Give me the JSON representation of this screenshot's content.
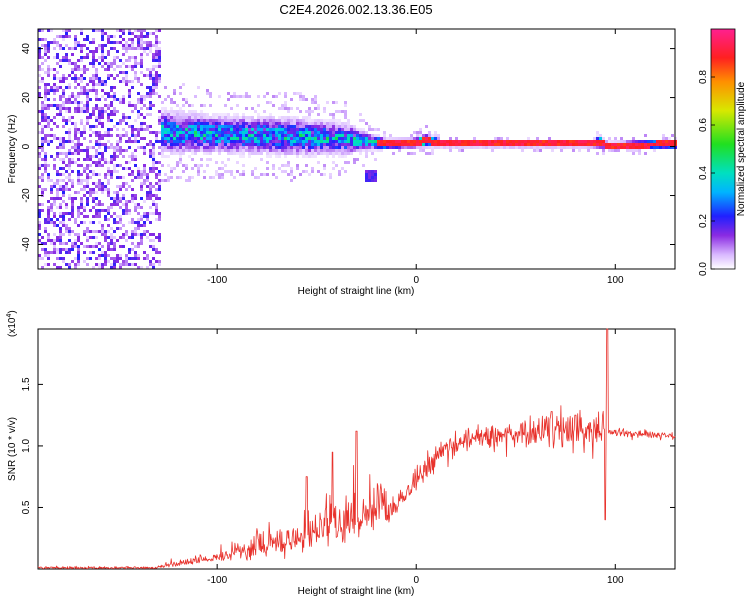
{
  "title": "C2E4.2026.002.13.36.E05",
  "chart_data": [
    {
      "type": "heatmap",
      "name": "spectrogram",
      "xlabel": "Height of straight line (km)",
      "ylabel": "Frequency (Hz)",
      "xlim": [
        -190,
        130
      ],
      "ylim": [
        -50,
        48
      ],
      "xticks": [
        -100,
        0,
        100
      ],
      "xtick_labels": [
        "-100",
        "0",
        "100"
      ],
      "yticks": [
        -40,
        -20,
        0,
        20,
        40
      ],
      "ytick_labels": [
        "-40",
        "-20",
        "0",
        "20",
        "40"
      ],
      "colorbar": {
        "label": "Normalized spectral amplitude",
        "range": [
          0,
          1
        ],
        "ticks": [
          0.0,
          0.2,
          0.4,
          0.6,
          0.8
        ],
        "tick_labels": [
          "0.0",
          "0.2",
          "0.4",
          "0.6",
          "0.8"
        ]
      },
      "ridge": {
        "height_km": [
          -128,
          -100,
          -60,
          -35,
          -25,
          -15,
          0,
          5,
          15,
          60,
          88,
          92,
          96,
          130
        ],
        "freq_hz": [
          6,
          5,
          4,
          3,
          2,
          1,
          1.5,
          2.5,
          1,
          1,
          1,
          2,
          0.5,
          1
        ],
        "spread_hz": [
          7,
          6,
          6,
          5,
          3,
          1.5,
          1.5,
          2,
          1,
          1,
          1,
          2,
          1,
          1.5
        ]
      },
      "noise_region_km": [
        -190,
        -128
      ],
      "side_feature": {
        "height_km": [
          -25,
          -20
        ],
        "freq_hz": -12
      }
    },
    {
      "type": "line",
      "name": "snr",
      "xlabel": "Height of straight line (km)",
      "ylabel": "SNR (10 * v/v)",
      "y_multiplier": "(x10",
      "y_multiplier_exp": "4",
      "y_multiplier_close": ")",
      "xlim": [
        -190,
        130
      ],
      "ylim": [
        0,
        1.95
      ],
      "xticks": [
        -100,
        0,
        100
      ],
      "xtick_labels": [
        "-100",
        "0",
        "100"
      ],
      "yticks": [
        0.5,
        1.0,
        1.5
      ],
      "ytick_labels": [
        "0.5",
        "1.0",
        "1.5"
      ],
      "line_color": "#e8322c",
      "trend": {
        "height_km": [
          -190,
          -130,
          -110,
          -80,
          -50,
          -30,
          -15,
          -5,
          5,
          15,
          25,
          40,
          60,
          80,
          95,
          100,
          110,
          130
        ],
        "snr_x1e4": [
          0.01,
          0.01,
          0.05,
          0.12,
          0.22,
          0.32,
          0.42,
          0.62,
          0.82,
          0.98,
          1.05,
          1.08,
          1.1,
          1.12,
          1.12,
          1.11,
          1.1,
          1.08
        ]
      },
      "spikes": [
        {
          "height_km": -30,
          "snr_x1e4": 1.12
        },
        {
          "height_km": -42,
          "snr_x1e4": 0.95
        },
        {
          "height_km": -55,
          "snr_x1e4": 0.75
        },
        {
          "height_km": 68,
          "snr_x1e4": 1.28
        },
        {
          "height_km": 80,
          "snr_x1e4": 1.25
        },
        {
          "height_km": 96,
          "snr_x1e4": 1.95
        },
        {
          "height_km": 95,
          "snr_x1e4": 0.4
        }
      ]
    }
  ]
}
